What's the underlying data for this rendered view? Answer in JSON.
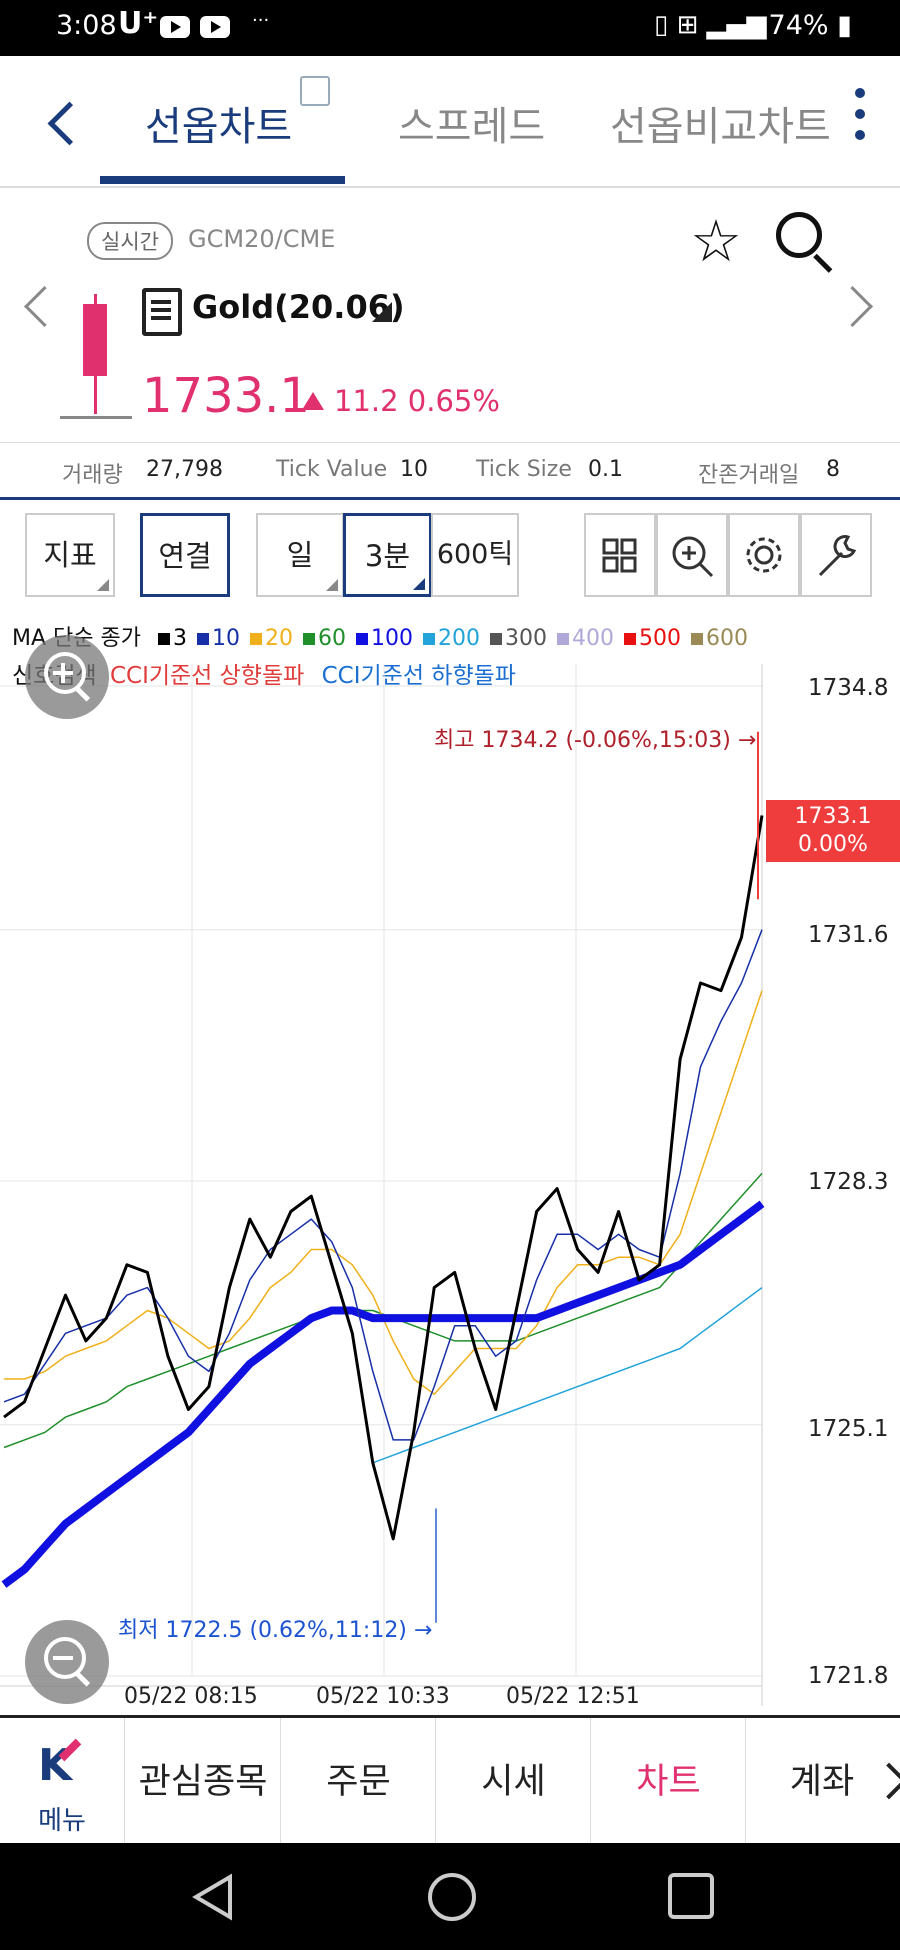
{
  "status_bar": {
    "time": "3:08",
    "carrier": "U⁺",
    "dots": "···",
    "battery": "74%",
    "icons": [
      "vibrate-icon",
      "lte-icon",
      "signal-icon",
      "battery-icon"
    ]
  },
  "tabs": [
    {
      "label": "선옵차트",
      "active": true
    },
    {
      "label": "스프레드",
      "active": false
    },
    {
      "label": "선옵비교차트",
      "active": false
    }
  ],
  "product": {
    "realtime_label": "실시간",
    "code": "GCM20/CME",
    "name": "Gold(20.06)",
    "price": "1733.1",
    "change": "11.2 0.65%",
    "direction": "up",
    "price_color": "#e0306e"
  },
  "stats": [
    {
      "label": "거래량",
      "value": "27,798"
    },
    {
      "label": "Tick Value",
      "value": "10"
    },
    {
      "label": "Tick Size",
      "value": "0.1"
    },
    {
      "label": "잔존거래일",
      "value": "8"
    }
  ],
  "toolbar": {
    "indicator": "지표",
    "link": "연결",
    "period_day": "일",
    "period_3min": "3분",
    "period_tick": "600틱"
  },
  "legend": {
    "title": "MA 단순 종가",
    "items": [
      {
        "label": "3",
        "color": "#000000"
      },
      {
        "label": "10",
        "color": "#1730a8"
      },
      {
        "label": "20",
        "color": "#f0b01a"
      },
      {
        "label": "60",
        "color": "#1f8f2a"
      },
      {
        "label": "100",
        "color": "#1010e0"
      },
      {
        "label": "200",
        "color": "#22a3d9"
      },
      {
        "label": "300",
        "color": "#555555"
      },
      {
        "label": "400",
        "color": "#b0a8d8"
      },
      {
        "label": "500",
        "color": "#e81010"
      },
      {
        "label": "600",
        "color": "#9a8a55"
      }
    ],
    "signal_label": "신호검색",
    "signal_up": "CCI기준선 상향돌파",
    "signal_down": "CCI기준선 하향돌파",
    "signal_up_color": "#e03c3c",
    "signal_down_color": "#1b6fd1"
  },
  "chart_data": {
    "type": "line",
    "title": "",
    "xlabel": "",
    "ylabel": "",
    "x_ticks": [
      "05/22 08:15",
      "05/22 10:33",
      "05/22 12:51"
    ],
    "y_ticks": [
      1734.8,
      1731.6,
      1728.3,
      1725.1,
      1721.8
    ],
    "ylim": [
      1721.8,
      1734.8
    ],
    "high_annotation": "최고 1734.2 (-0.06%,15:03) →",
    "low_annotation": "최저 1722.5 (0.62%,11:12) →",
    "current_value": "1733.1",
    "current_change": "0.00%",
    "grid": true,
    "series": [
      {
        "name": "3",
        "values": [
          1725.2,
          1725.4,
          1726.1,
          1726.8,
          1726.2,
          1726.5,
          1727.2,
          1727.1,
          1726.0,
          1725.3,
          1725.6,
          1726.9,
          1727.8,
          1727.3,
          1727.9,
          1728.1,
          1727.2,
          1726.3,
          1724.6,
          1723.6,
          1725.0,
          1726.9,
          1727.1,
          1726.1,
          1725.3,
          1726.6,
          1727.9,
          1728.2,
          1727.4,
          1727.1,
          1727.9,
          1727.0,
          1727.2,
          1729.9,
          1730.9,
          1730.8,
          1731.5,
          1733.1
        ]
      },
      {
        "name": "10",
        "values": [
          1725.4,
          1725.5,
          1725.9,
          1726.3,
          1726.4,
          1726.5,
          1726.8,
          1726.9,
          1726.5,
          1726.0,
          1725.8,
          1726.3,
          1727.0,
          1727.4,
          1727.6,
          1727.8,
          1727.5,
          1726.9,
          1725.8,
          1724.9,
          1724.9,
          1725.6,
          1726.4,
          1726.4,
          1726.0,
          1726.2,
          1727.0,
          1727.6,
          1727.6,
          1727.4,
          1727.6,
          1727.4,
          1727.3,
          1728.4,
          1729.8,
          1730.4,
          1730.9,
          1731.6
        ]
      },
      {
        "name": "20",
        "values": [
          1725.7,
          1725.7,
          1725.8,
          1726.0,
          1726.1,
          1726.2,
          1726.4,
          1726.6,
          1726.5,
          1726.3,
          1726.1,
          1726.2,
          1726.5,
          1726.9,
          1727.1,
          1727.4,
          1727.4,
          1727.2,
          1726.8,
          1726.2,
          1725.7,
          1725.5,
          1725.8,
          1726.1,
          1726.1,
          1726.1,
          1726.4,
          1726.9,
          1727.2,
          1727.2,
          1727.3,
          1727.3,
          1727.2,
          1727.6,
          1728.4,
          1729.2,
          1730.0,
          1730.8
        ]
      },
      {
        "name": "60",
        "values": [
          1724.8,
          1724.9,
          1725.0,
          1725.2,
          1725.3,
          1725.4,
          1725.6,
          1725.7,
          1725.8,
          1725.9,
          1726.0,
          1726.1,
          1726.2,
          1726.3,
          1726.4,
          1726.5,
          1726.6,
          1726.6,
          1726.6,
          1726.5,
          1726.4,
          1726.3,
          1726.2,
          1726.2,
          1726.2,
          1726.2,
          1726.3,
          1726.4,
          1726.5,
          1726.6,
          1726.7,
          1726.8,
          1726.9,
          1727.2,
          1727.5,
          1727.8,
          1728.1,
          1728.4
        ]
      },
      {
        "name": "100",
        "values": [
          1723.0,
          1723.2,
          1723.5,
          1723.8,
          1724.0,
          1724.2,
          1724.4,
          1724.6,
          1724.8,
          1725.0,
          1725.3,
          1725.6,
          1725.9,
          1726.1,
          1726.3,
          1726.5,
          1726.6,
          1726.6,
          1726.5,
          1726.5,
          1726.5,
          1726.5,
          1726.5,
          1726.5,
          1726.5,
          1726.5,
          1726.5,
          1726.6,
          1726.7,
          1726.8,
          1726.9,
          1727.0,
          1727.1,
          1727.2,
          1727.4,
          1727.6,
          1727.8,
          1728.0
        ]
      },
      {
        "name": "200",
        "values": [
          null,
          null,
          null,
          null,
          null,
          null,
          null,
          null,
          null,
          null,
          null,
          null,
          null,
          null,
          null,
          null,
          null,
          null,
          1724.6,
          1724.7,
          1724.8,
          1724.9,
          1725.0,
          1725.1,
          1725.2,
          1725.3,
          1725.4,
          1725.5,
          1725.6,
          1725.7,
          1725.8,
          1725.9,
          1726.0,
          1726.1,
          1726.3,
          1726.5,
          1726.7,
          1726.9
        ]
      }
    ]
  },
  "bottom_nav": {
    "menu": "메뉴",
    "items": [
      {
        "label": "관심종목",
        "active": false
      },
      {
        "label": "주문",
        "active": false
      },
      {
        "label": "시세",
        "active": false
      },
      {
        "label": "차트",
        "active": true
      },
      {
        "label": "계좌",
        "active": false
      }
    ]
  }
}
